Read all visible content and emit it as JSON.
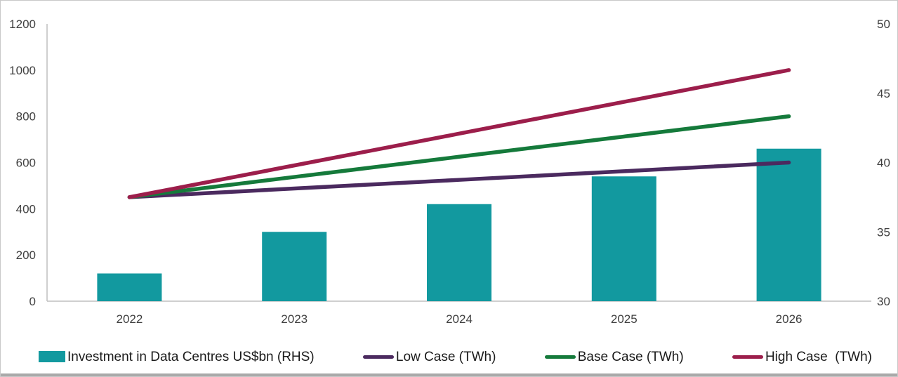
{
  "chart_data": {
    "type": "bar",
    "subtype": "combo-bar-line-dual-axis",
    "title": "",
    "categories": [
      "2022",
      "2023",
      "2024",
      "2025",
      "2026"
    ],
    "left_axis": {
      "min": 0,
      "max": 1200,
      "ticks": [
        "0",
        "200",
        "400",
        "600",
        "800",
        "1000",
        "1200"
      ]
    },
    "right_axis": {
      "min": 30,
      "max": 50,
      "ticks": [
        "30",
        "35",
        "40",
        "45",
        "50"
      ]
    },
    "grid": false,
    "legend_position": "bottom",
    "bar_series": {
      "name": "Investment in Data Centres US$bn (RHS)",
      "color": "#12999F",
      "values": [
        120,
        300,
        420,
        540,
        660
      ],
      "plotted_scale": "left-axis-0-1200"
    },
    "line_series": [
      {
        "name": "Low Case (TWh)",
        "color": "#4B2A5F",
        "values": [
          450,
          487.5,
          525,
          562.5,
          600
        ],
        "plotted_scale": "left-axis-0-1200"
      },
      {
        "name": "Base Case (TWh)",
        "color": "#157A3B",
        "values": [
          450,
          537.5,
          625,
          712.5,
          800
        ],
        "plotted_scale": "left-axis-0-1200"
      },
      {
        "name": "High Case  (TWh)",
        "color": "#9C1E4B",
        "values": [
          450,
          587.5,
          725,
          862.5,
          1000
        ],
        "plotted_scale": "left-axis-0-1200"
      }
    ],
    "axis_line_color": "#BFBFBF",
    "tick_text_color": "#404040",
    "legend_text_color": "#1A1A1A"
  }
}
